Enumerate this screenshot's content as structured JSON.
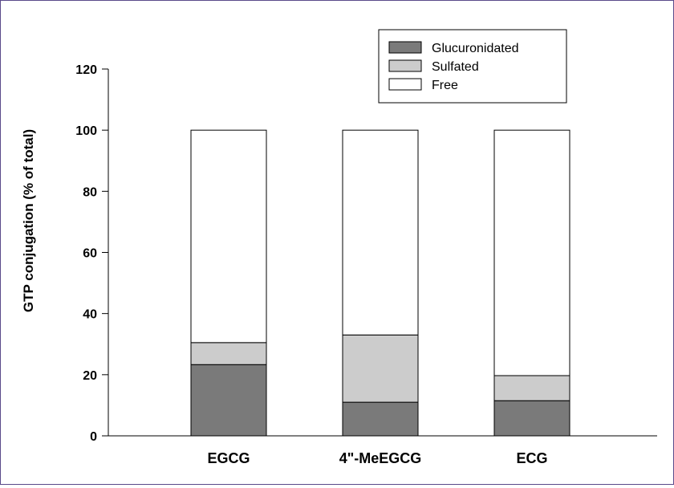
{
  "chart_data": {
    "type": "bar",
    "stacked": true,
    "title": "",
    "xlabel": "",
    "ylabel": "GTP conjugation (% of total)",
    "ylim": [
      0,
      120
    ],
    "yticks": [
      0,
      20,
      40,
      60,
      80,
      100,
      120
    ],
    "categories": [
      "EGCG",
      "4\"-MeEGCG",
      "ECG"
    ],
    "series": [
      {
        "name": "Glucuronidated",
        "color": "#7a7a7a",
        "values": [
          23.3,
          11.0,
          11.5
        ]
      },
      {
        "name": "Sulfated",
        "color": "#cccccc",
        "values": [
          7.2,
          22.0,
          8.2
        ]
      },
      {
        "name": "Free",
        "color": "#ffffff",
        "values": [
          69.5,
          67.0,
          80.3
        ]
      }
    ],
    "grid": false,
    "legend_position": "top-right"
  }
}
